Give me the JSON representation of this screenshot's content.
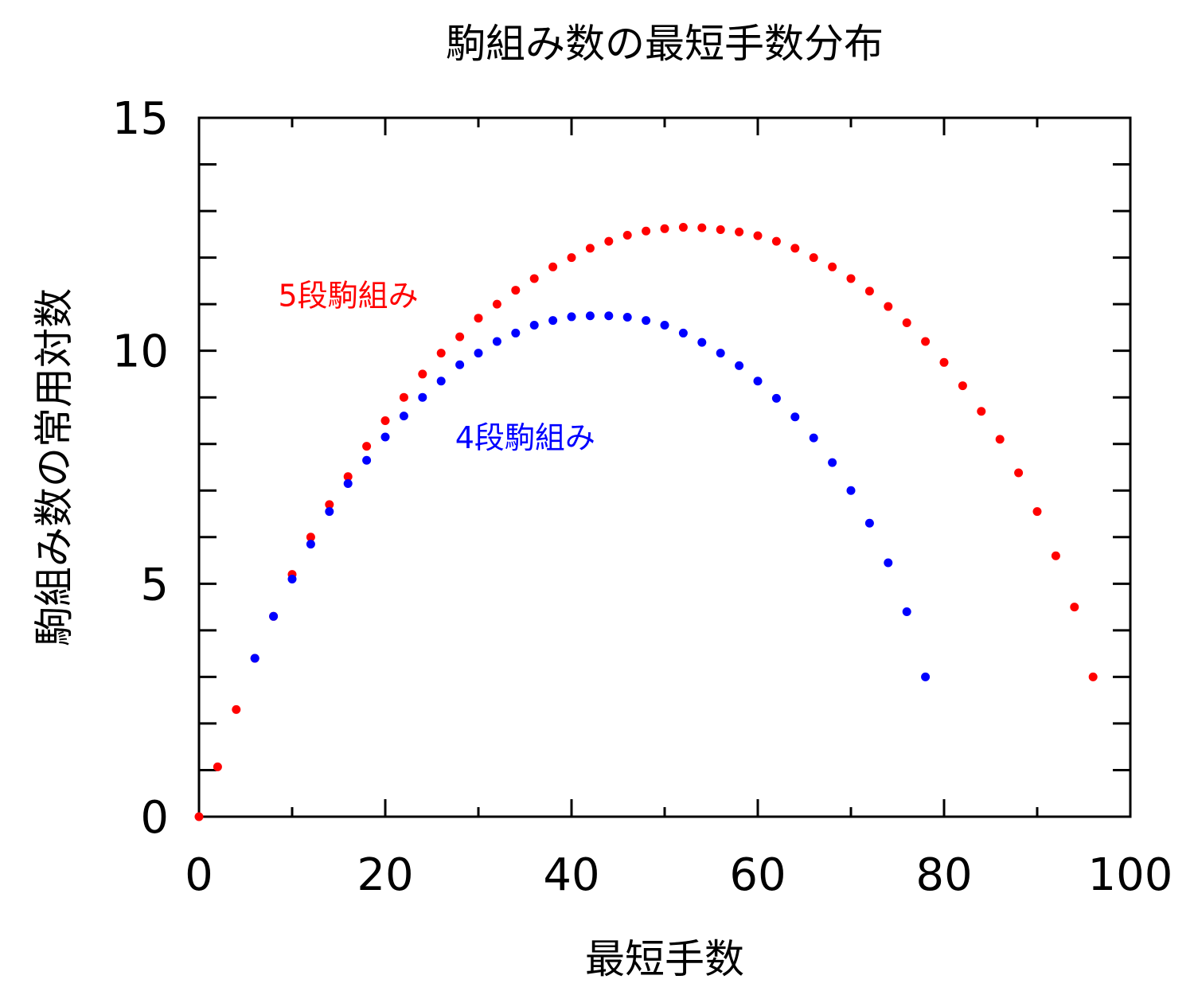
{
  "chart_data": {
    "type": "scatter",
    "title": "駒組み数の最短手数分布",
    "xlabel": "最短手数",
    "ylabel": "駒組み数の常用対数",
    "xlim": [
      0,
      100
    ],
    "ylim": [
      0,
      15
    ],
    "xticks": [
      0,
      20,
      40,
      60,
      80,
      100
    ],
    "yticks": [
      0,
      5,
      10,
      15
    ],
    "xtick_labels": [
      "0",
      "20",
      "40",
      "60",
      "80",
      "100"
    ],
    "ytick_labels": [
      "0",
      "5",
      "10",
      "15"
    ],
    "grid": false,
    "series": [
      {
        "name": "5段駒組み",
        "color": "#ff0000",
        "x": [
          0,
          2,
          4,
          6,
          8,
          10,
          12,
          14,
          16,
          18,
          20,
          22,
          24,
          26,
          28,
          30,
          32,
          34,
          36,
          38,
          40,
          42,
          44,
          46,
          48,
          50,
          52,
          54,
          56,
          58,
          60,
          62,
          64,
          66,
          68,
          70,
          72,
          74,
          76,
          78,
          80,
          82,
          84,
          86,
          88,
          90,
          92,
          94,
          96
        ],
        "y": [
          0.0,
          1.07,
          2.3,
          3.4,
          4.3,
          5.2,
          6.0,
          6.7,
          7.3,
          7.95,
          8.5,
          9.0,
          9.5,
          9.95,
          10.3,
          10.7,
          11.0,
          11.3,
          11.55,
          11.8,
          12.0,
          12.2,
          12.35,
          12.48,
          12.57,
          12.62,
          12.65,
          12.64,
          12.6,
          12.55,
          12.47,
          12.35,
          12.2,
          12.0,
          11.8,
          11.55,
          11.28,
          10.95,
          10.6,
          10.2,
          9.75,
          9.25,
          8.7,
          8.1,
          7.38,
          6.55,
          5.6,
          4.5,
          3.0
        ]
      },
      {
        "name": "4段駒組み",
        "color": "#0000ff",
        "x": [
          6,
          8,
          10,
          12,
          14,
          16,
          18,
          20,
          22,
          24,
          26,
          28,
          30,
          32,
          34,
          36,
          38,
          40,
          42,
          44,
          46,
          48,
          50,
          52,
          54,
          56,
          58,
          60,
          62,
          64,
          66,
          68,
          70,
          72,
          74,
          76,
          78
        ],
        "y": [
          3.4,
          4.3,
          5.1,
          5.85,
          6.55,
          7.15,
          7.65,
          8.15,
          8.6,
          9.0,
          9.35,
          9.7,
          9.95,
          10.2,
          10.38,
          10.55,
          10.65,
          10.73,
          10.75,
          10.75,
          10.72,
          10.65,
          10.55,
          10.38,
          10.18,
          9.95,
          9.68,
          9.35,
          8.98,
          8.58,
          8.13,
          7.6,
          7.0,
          6.3,
          5.45,
          4.4,
          3.0
        ]
      }
    ],
    "annotations": [
      {
        "text": "5段駒組み",
        "x": 8.5,
        "y": 11.2,
        "color": "#ff0000"
      },
      {
        "text": "4段駒組み",
        "x": 27.5,
        "y": 8.15,
        "color": "#0000ff"
      }
    ]
  }
}
